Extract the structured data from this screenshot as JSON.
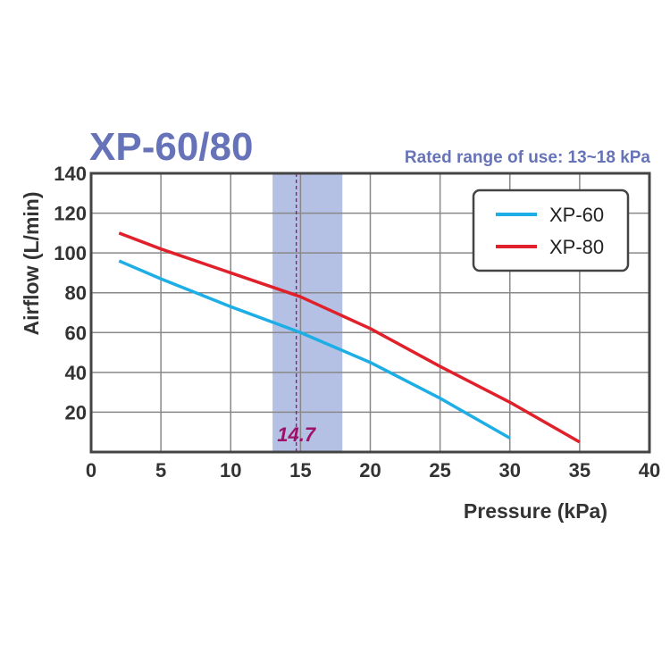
{
  "chart_data": {
    "type": "line",
    "title": "XP-60/80",
    "subtitle": "Rated range of use: 13~18 kPa",
    "xlabel": "Pressure (kPa)",
    "ylabel": "Airflow (L/min)",
    "xlim": [
      0,
      40
    ],
    "ylim": [
      0,
      140
    ],
    "xticks": [
      "0",
      "5",
      "10",
      "15",
      "20",
      "25",
      "30",
      "35",
      "40"
    ],
    "yticks": [
      "20",
      "40",
      "60",
      "80",
      "100",
      "120",
      "140"
    ],
    "grid": true,
    "legend_position": "top-right",
    "shaded_range": {
      "from": 13,
      "to": 18,
      "color": "#b4c0e4"
    },
    "marker": {
      "x": 14.7,
      "label": "14.7",
      "color": "#a0106a"
    },
    "series": [
      {
        "name": "XP-60",
        "color": "#1eaee6",
        "x": [
          2,
          5,
          10,
          15,
          20,
          25,
          30
        ],
        "y": [
          96,
          87,
          73,
          60,
          45,
          27,
          7
        ]
      },
      {
        "name": "XP-80",
        "color": "#e0202a",
        "x": [
          2,
          5,
          10,
          15,
          20,
          25,
          30,
          35
        ],
        "y": [
          110,
          102,
          90,
          78,
          62,
          43,
          25,
          5
        ]
      }
    ]
  }
}
